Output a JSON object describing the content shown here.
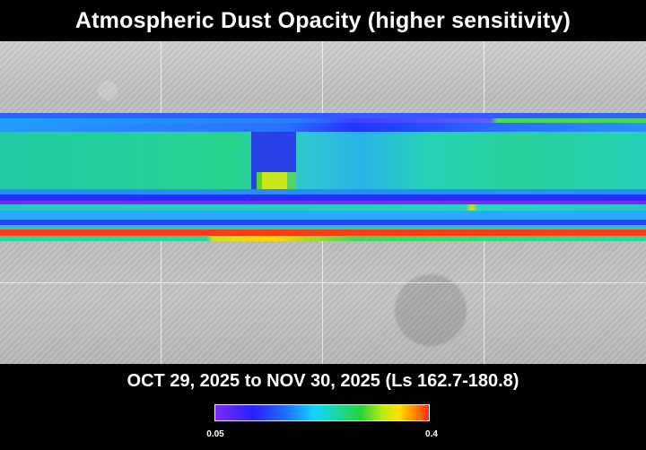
{
  "title": "Atmospheric Dust Opacity (higher sensitivity)",
  "date_range": "OCT 29, 2025 to NOV 30, 2025 (Ls 162.7-180.8)",
  "colorbar": {
    "min_label": "0.05",
    "max_label": "0.4"
  },
  "colors": {
    "low": "#7a2cf0",
    "mid_low": "#1c76ff",
    "mid": "#19d8a8",
    "mid_high": "#ffe100",
    "high": "#ff2d12"
  }
}
